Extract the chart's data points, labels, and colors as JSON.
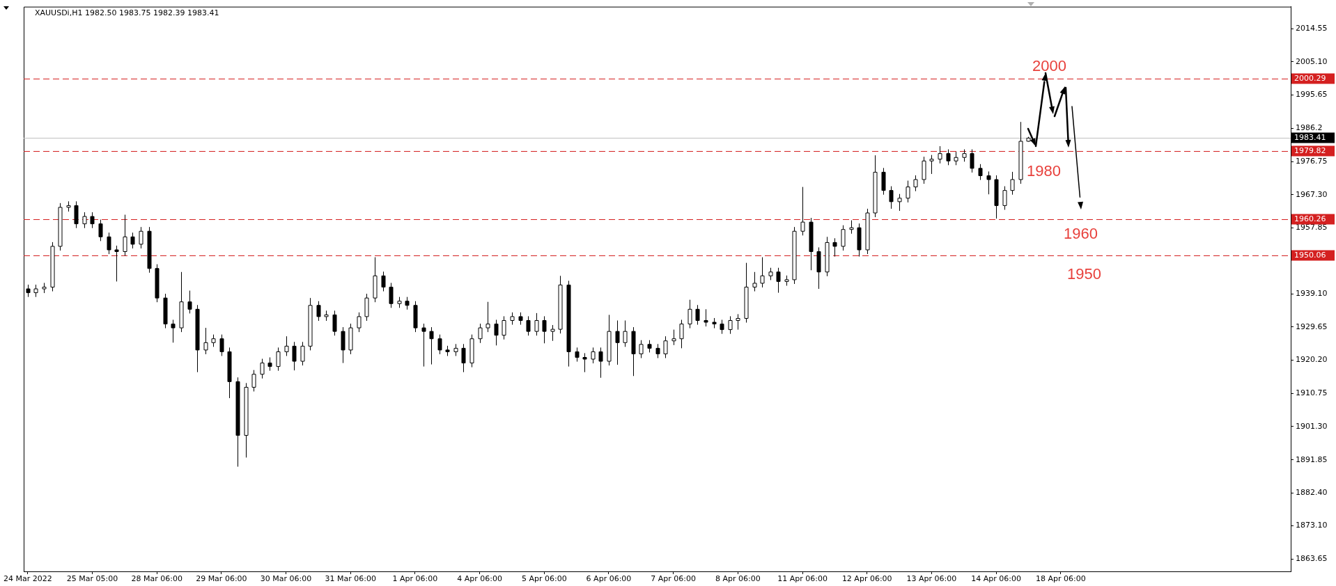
{
  "chart_data": {
    "type": "candlestick",
    "title": "XAUUSDi,H1 1982.50 1983.75 1982.39 1983.41",
    "categories": [
      "24 Mar 2022",
      null,
      null,
      null,
      null,
      null,
      null,
      null,
      "25 Mar 05:00",
      null,
      null,
      null,
      null,
      null,
      null,
      null,
      "28 Mar 06:00",
      null,
      null,
      null,
      null,
      null,
      null,
      null,
      "29 Mar 06:00",
      null,
      null,
      null,
      null,
      null,
      null,
      null,
      "30 Mar 06:00",
      null,
      null,
      null,
      null,
      null,
      null,
      null,
      "31 Mar 06:00",
      null,
      null,
      null,
      null,
      null,
      null,
      null,
      "1 Apr 06:00",
      null,
      null,
      null,
      null,
      null,
      null,
      null,
      "4 Apr 06:00",
      null,
      null,
      null,
      null,
      null,
      null,
      null,
      "5 Apr 06:00",
      null,
      null,
      null,
      null,
      null,
      null,
      null,
      "6 Apr 06:00",
      null,
      null,
      null,
      null,
      null,
      null,
      null,
      "7 Apr 06:00",
      null,
      null,
      null,
      null,
      null,
      null,
      null,
      "8 Apr 06:00",
      null,
      null,
      null,
      null,
      null,
      null,
      null,
      "11 Apr 06:00",
      null,
      null,
      null,
      null,
      null,
      null,
      null,
      "12 Apr 06:00",
      null,
      null,
      null,
      null,
      null,
      null,
      null,
      "13 Apr 06:00",
      null,
      null,
      null,
      null,
      null,
      null,
      null,
      "14 Apr 06:00",
      null,
      null,
      null,
      null,
      null,
      null,
      null,
      "18 Apr 06:00",
      null,
      null,
      null,
      null,
      null,
      null,
      null,
      null,
      null,
      null,
      null,
      null,
      null,
      null,
      null,
      null,
      null,
      null,
      null,
      null,
      null,
      null,
      null,
      null,
      null,
      null,
      null,
      null
    ],
    "ohlc": [
      [
        1940.5,
        1941.7,
        1938.2,
        1939.4
      ],
      [
        1939.4,
        1941.7,
        1938.2,
        1940.5
      ],
      [
        1940.5,
        1942.2,
        1939.3,
        1941.0
      ],
      [
        1941.0,
        1953.8,
        1939.8,
        1952.6
      ],
      [
        1952.6,
        1964.9,
        1951.4,
        1963.7
      ],
      [
        1963.7,
        1965.4,
        1962.5,
        1964.2
      ],
      [
        1964.2,
        1965.4,
        1957.8,
        1959.0
      ],
      [
        1959.0,
        1962.3,
        1957.8,
        1961.1
      ],
      [
        1961.1,
        1962.3,
        1957.8,
        1959.0
      ],
      [
        1959.0,
        1960.2,
        1954.1,
        1955.3
      ],
      [
        1955.3,
        1956.5,
        1950.4,
        1951.6
      ],
      [
        1951.6,
        1952.8,
        1942.6,
        1951.1
      ],
      [
        1951.1,
        1961.6,
        1949.9,
        1955.3
      ],
      [
        1955.3,
        1956.5,
        1952.0,
        1953.2
      ],
      [
        1953.2,
        1958.1,
        1952.0,
        1956.9
      ],
      [
        1956.9,
        1958.1,
        1945.1,
        1946.3
      ],
      [
        1946.3,
        1947.5,
        1936.7,
        1937.9
      ],
      [
        1937.9,
        1939.1,
        1929.3,
        1930.5
      ],
      [
        1930.5,
        1931.7,
        1925.2,
        1929.4
      ],
      [
        1929.4,
        1945.3,
        1928.2,
        1936.8
      ],
      [
        1936.8,
        1940.0,
        1933.5,
        1934.7
      ],
      [
        1934.7,
        1935.9,
        1916.8,
        1923.1
      ],
      [
        1923.1,
        1929.4,
        1921.9,
        1925.2
      ],
      [
        1925.2,
        1927.5,
        1924.0,
        1926.3
      ],
      [
        1926.3,
        1927.5,
        1921.4,
        1922.6
      ],
      [
        1922.6,
        1923.8,
        1909.4,
        1914.1
      ],
      [
        1914.1,
        1915.3,
        1889.9,
        1898.8
      ],
      [
        1898.8,
        1913.7,
        1892.5,
        1912.5
      ],
      [
        1912.5,
        1917.4,
        1911.3,
        1916.2
      ],
      [
        1916.2,
        1920.6,
        1915.0,
        1919.4
      ],
      [
        1919.4,
        1921.0,
        1917.2,
        1918.4
      ],
      [
        1918.4,
        1923.8,
        1917.2,
        1922.6
      ],
      [
        1922.6,
        1927.0,
        1921.4,
        1924.2
      ],
      [
        1924.2,
        1925.4,
        1917.3,
        1919.9
      ],
      [
        1919.9,
        1925.4,
        1918.7,
        1924.2
      ],
      [
        1924.2,
        1937.9,
        1923.0,
        1935.8
      ],
      [
        1935.8,
        1937.0,
        1931.4,
        1932.6
      ],
      [
        1932.6,
        1934.3,
        1931.4,
        1933.1
      ],
      [
        1933.1,
        1934.3,
        1927.2,
        1928.4
      ],
      [
        1928.4,
        1929.6,
        1919.4,
        1923.1
      ],
      [
        1923.1,
        1930.6,
        1921.9,
        1929.4
      ],
      [
        1929.4,
        1933.8,
        1928.2,
        1932.6
      ],
      [
        1932.6,
        1939.1,
        1931.4,
        1937.9
      ],
      [
        1937.9,
        1949.5,
        1936.7,
        1944.2
      ],
      [
        1944.2,
        1945.4,
        1939.8,
        1941.0
      ],
      [
        1941.0,
        1942.2,
        1935.1,
        1936.3
      ],
      [
        1936.3,
        1938.2,
        1935.1,
        1937.0
      ],
      [
        1937.0,
        1938.2,
        1934.6,
        1935.8
      ],
      [
        1935.8,
        1937.0,
        1928.2,
        1929.4
      ],
      [
        1929.4,
        1930.6,
        1918.4,
        1928.4
      ],
      [
        1928.4,
        1929.6,
        1919.0,
        1926.3
      ],
      [
        1926.3,
        1927.5,
        1921.9,
        1923.1
      ],
      [
        1923.1,
        1924.3,
        1921.4,
        1922.6
      ],
      [
        1922.6,
        1924.8,
        1921.4,
        1923.6
      ],
      [
        1923.6,
        1924.8,
        1916.8,
        1919.4
      ],
      [
        1919.4,
        1927.5,
        1918.2,
        1926.3
      ],
      [
        1926.3,
        1930.6,
        1925.1,
        1929.4
      ],
      [
        1929.4,
        1936.8,
        1928.2,
        1930.5
      ],
      [
        1930.5,
        1931.7,
        1924.4,
        1927.3
      ],
      [
        1927.3,
        1932.7,
        1926.1,
        1931.5
      ],
      [
        1931.5,
        1933.8,
        1930.3,
        1932.6
      ],
      [
        1932.6,
        1933.8,
        1930.3,
        1931.5
      ],
      [
        1931.5,
        1932.7,
        1927.2,
        1928.4
      ],
      [
        1928.4,
        1933.6,
        1927.2,
        1931.5
      ],
      [
        1931.5,
        1932.7,
        1925.0,
        1928.4
      ],
      [
        1928.4,
        1930.2,
        1925.7,
        1929.0
      ],
      [
        1929.0,
        1944.2,
        1927.8,
        1941.6
      ],
      [
        1941.6,
        1942.8,
        1918.4,
        1922.6
      ],
      [
        1922.6,
        1923.8,
        1919.8,
        1921.0
      ],
      [
        1921.0,
        1922.2,
        1916.8,
        1920.5
      ],
      [
        1920.5,
        1923.8,
        1919.3,
        1922.6
      ],
      [
        1922.6,
        1923.8,
        1915.2,
        1919.9
      ],
      [
        1919.9,
        1933.1,
        1918.7,
        1928.4
      ],
      [
        1928.4,
        1931.5,
        1918.9,
        1925.2
      ],
      [
        1925.2,
        1931.5,
        1924.0,
        1928.4
      ],
      [
        1928.4,
        1929.6,
        1915.7,
        1922.0
      ],
      [
        1922.0,
        1925.9,
        1920.8,
        1924.7
      ],
      [
        1924.7,
        1925.9,
        1922.4,
        1923.6
      ],
      [
        1923.6,
        1924.8,
        1920.8,
        1922.0
      ],
      [
        1922.0,
        1927.0,
        1920.8,
        1925.7
      ],
      [
        1925.7,
        1928.9,
        1924.5,
        1926.3
      ],
      [
        1926.3,
        1931.7,
        1923.6,
        1930.5
      ],
      [
        1930.5,
        1937.4,
        1929.3,
        1934.7
      ],
      [
        1934.7,
        1935.9,
        1930.3,
        1931.5
      ],
      [
        1931.5,
        1934.7,
        1929.8,
        1931.0
      ],
      [
        1931.0,
        1932.2,
        1929.3,
        1930.5
      ],
      [
        1930.5,
        1931.7,
        1927.7,
        1928.9
      ],
      [
        1928.9,
        1932.7,
        1927.7,
        1931.5
      ],
      [
        1931.5,
        1933.3,
        1928.9,
        1932.1
      ],
      [
        1932.1,
        1947.9,
        1930.9,
        1941.0
      ],
      [
        1941.0,
        1945.3,
        1939.8,
        1942.1
      ],
      [
        1942.1,
        1949.5,
        1940.9,
        1944.2
      ],
      [
        1944.2,
        1946.5,
        1943.0,
        1945.3
      ],
      [
        1945.3,
        1946.5,
        1939.4,
        1942.6
      ],
      [
        1942.6,
        1944.3,
        1941.4,
        1943.1
      ],
      [
        1943.1,
        1958.1,
        1941.9,
        1956.9
      ],
      [
        1956.9,
        1969.5,
        1955.7,
        1959.5
      ],
      [
        1959.5,
        1960.7,
        1945.8,
        1951.1
      ],
      [
        1951.1,
        1952.3,
        1940.5,
        1945.3
      ],
      [
        1945.3,
        1955.3,
        1944.1,
        1953.7
      ],
      [
        1953.7,
        1954.9,
        1949.7,
        1952.6
      ],
      [
        1952.6,
        1958.6,
        1951.4,
        1957.4
      ],
      [
        1957.4,
        1960.0,
        1956.2,
        1957.9
      ],
      [
        1957.9,
        1959.1,
        1949.7,
        1951.6
      ],
      [
        1951.6,
        1963.3,
        1950.4,
        1962.1
      ],
      [
        1962.1,
        1978.5,
        1960.9,
        1973.7
      ],
      [
        1973.7,
        1974.9,
        1967.3,
        1968.5
      ],
      [
        1968.5,
        1969.7,
        1963.3,
        1965.3
      ],
      [
        1965.3,
        1967.5,
        1962.7,
        1966.3
      ],
      [
        1966.3,
        1971.3,
        1965.1,
        1969.5
      ],
      [
        1969.5,
        1972.8,
        1968.3,
        1971.6
      ],
      [
        1971.6,
        1978.1,
        1970.4,
        1976.9
      ],
      [
        1976.9,
        1978.6,
        1973.2,
        1977.4
      ],
      [
        1977.4,
        1981.1,
        1976.2,
        1979.0
      ],
      [
        1979.0,
        1980.2,
        1975.7,
        1976.9
      ],
      [
        1976.9,
        1979.5,
        1975.7,
        1977.9
      ],
      [
        1977.9,
        1980.2,
        1976.7,
        1979.0
      ],
      [
        1979.0,
        1980.2,
        1973.6,
        1974.8
      ],
      [
        1974.8,
        1976.0,
        1971.5,
        1972.7
      ],
      [
        1972.7,
        1973.9,
        1967.4,
        1971.6
      ],
      [
        1971.6,
        1972.8,
        1960.5,
        1964.2
      ],
      [
        1964.2,
        1969.7,
        1963.0,
        1968.5
      ],
      [
        1968.5,
        1973.8,
        1967.3,
        1971.6
      ],
      [
        1971.6,
        1988.0,
        1970.4,
        1982.5
      ],
      [
        1982.5,
        1983.75,
        1982.39,
        1983.41
      ],
      null,
      null,
      null,
      null,
      null,
      null,
      null,
      null,
      null,
      null,
      null,
      null,
      null,
      null,
      null,
      null,
      null,
      null,
      null,
      null,
      null,
      null,
      null,
      null,
      null,
      null,
      null,
      null,
      null,
      null,
      null,
      null
    ],
    "ylim": [
      1860.1,
      2020.8
    ],
    "yticks": [
      2014.55,
      {
        "value": 2005.1,
        "label": "2005.10"
      },
      1995.65,
      1986.2,
      1976.75,
      {
        "value": 1967.3,
        "label": "1967.30"
      },
      1957.85,
      {
        "value": 1939.1,
        "label": "1939.10"
      },
      1929.65,
      {
        "value": 1920.2,
        "label": "1920.20"
      },
      1910.75,
      {
        "value": 1901.3,
        "label": "1901.30"
      },
      1891.85,
      {
        "value": 1882.4,
        "label": "1882.40"
      },
      {
        "value": 1873.1,
        "label": "1873.10"
      },
      1863.65
    ],
    "ref_lines": [
      {
        "axis": "y",
        "value": 2000.29,
        "label": "2000.29",
        "color": "#d42020",
        "line_style": "dashed"
      },
      {
        "axis": "y",
        "value": 1983.41,
        "label": "1983.41",
        "color": "#c0c0c0",
        "line_style": "solid"
      },
      {
        "axis": "y",
        "value": 1979.82,
        "label": "1979.82",
        "color": "#d42020",
        "line_style": "dashed"
      },
      {
        "axis": "y",
        "value": 1960.26,
        "label": "1960.26",
        "color": "#d42020",
        "line_style": "dashed"
      },
      {
        "axis": "y",
        "value": 1950.06,
        "label": "1950.06",
        "color": "#d42020",
        "line_style": "dashed"
      }
    ],
    "annotations": [
      {
        "text": "2000",
        "y": 2000.29
      },
      {
        "text": "1980",
        "y": 1979.82
      },
      {
        "text": "1960",
        "y": 1960.26
      },
      {
        "text": "1950",
        "y": 1950.06
      }
    ],
    "grid": false
  }
}
